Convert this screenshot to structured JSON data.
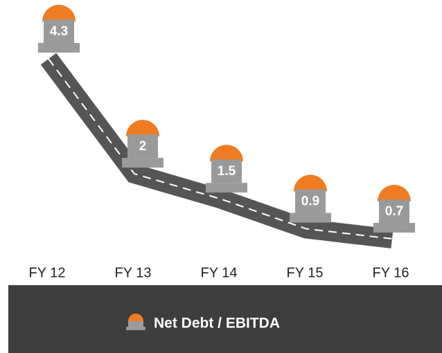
{
  "chart_data": {
    "type": "road-line",
    "categories": [
      "FY 12",
      "FY 13",
      "FY 14",
      "FY 15",
      "FY 16"
    ],
    "series": [
      {
        "name": "Net Debt / EBITDA",
        "color": "#f07c22",
        "values": [
          4.3,
          2.0,
          1.5,
          0.9,
          0.7
        ]
      }
    ]
  }
}
